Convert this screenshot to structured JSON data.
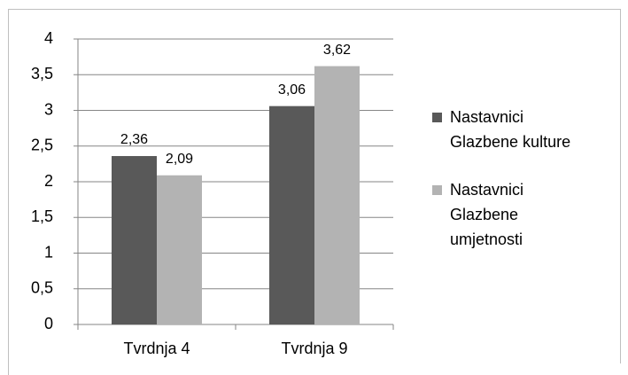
{
  "chart_data": {
    "type": "bar",
    "categories": [
      "Tvrdnja 4",
      "Tvrdnja 9"
    ],
    "series": [
      {
        "name": "Nastavnici Glazbene kulture",
        "color": "#595959",
        "values": [
          2.36,
          3.06
        ],
        "value_labels": [
          "2,36",
          "3,06"
        ]
      },
      {
        "name": "Nastavnici Glazbene umjetnosti",
        "color": "#b3b3b3",
        "values": [
          2.09,
          3.62
        ],
        "value_labels": [
          "2,09",
          "3,62"
        ]
      }
    ],
    "ylim": [
      0,
      4
    ],
    "yticks": [
      0,
      {
        "value": 0.5,
        "label": "0,5"
      },
      1,
      {
        "value": 1.5,
        "label": "1,5"
      },
      2,
      {
        "value": 2.5,
        "label": "2,5"
      },
      3,
      {
        "value": 3.5,
        "label": "3,5"
      },
      4
    ],
    "grid": true,
    "legend": "right"
  }
}
